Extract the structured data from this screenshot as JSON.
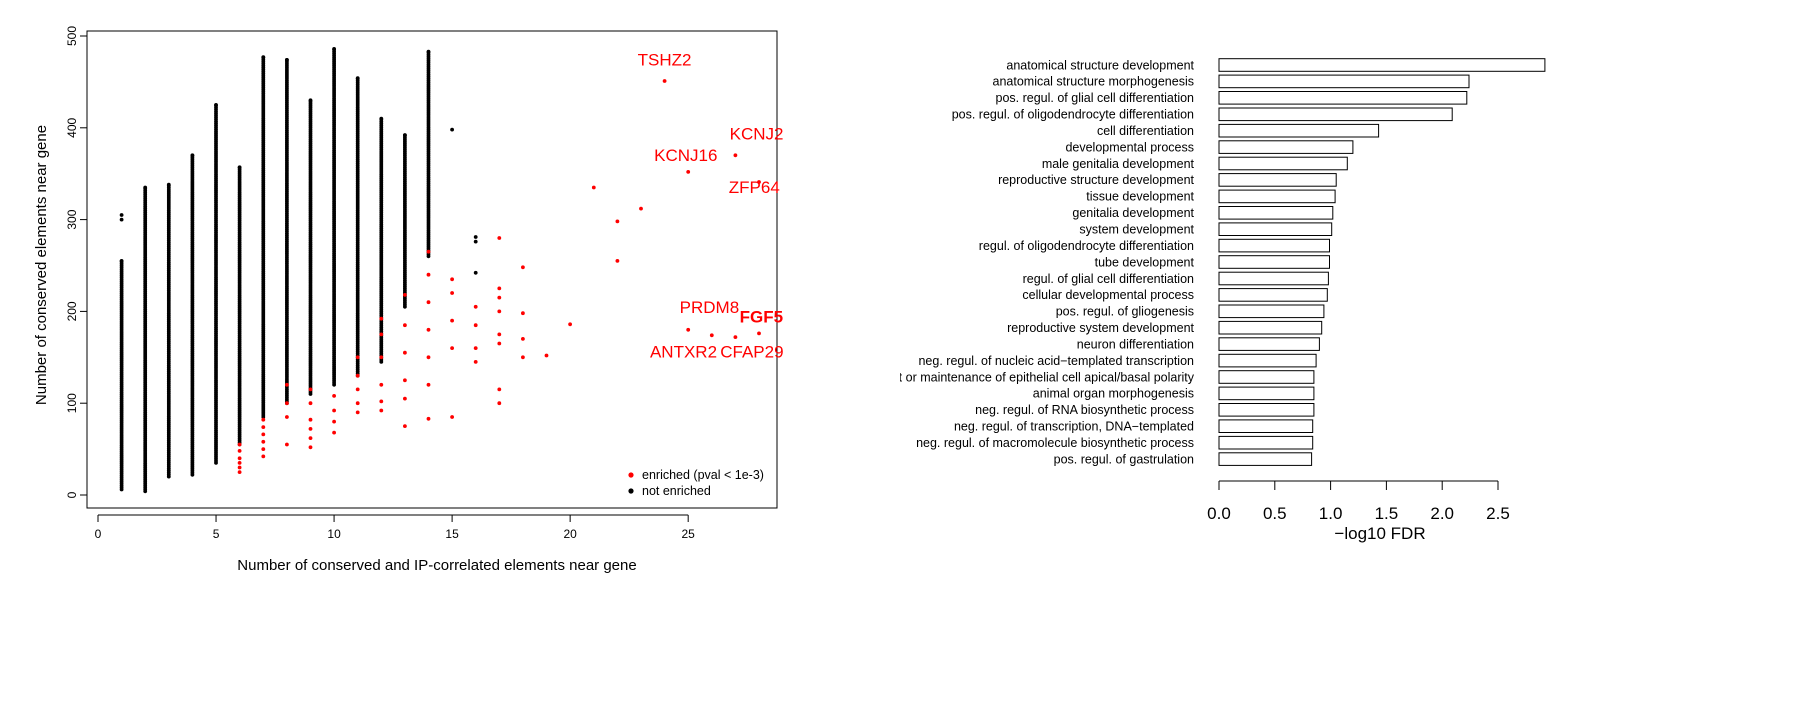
{
  "chart_data": [
    {
      "type": "scatter",
      "xlabel": "Number of conserved and IP-correlated elements near gene",
      "ylabel": "Number of conserved elements near gene",
      "xlim": [
        0,
        29
      ],
      "ylim": [
        0,
        510
      ],
      "x_ticks": [
        0,
        5,
        10,
        15,
        20,
        25
      ],
      "y_ticks": [
        0,
        100,
        200,
        300,
        400,
        500
      ],
      "grid": false,
      "legend_position": "bottom-right",
      "legend": [
        {
          "label": "enriched (pval < 1e-3)",
          "color": "#ff0000"
        },
        {
          "label": "not enriched",
          "color": "#000000"
        }
      ],
      "series": [
        {
          "legend_index": 1,
          "color": "#000000",
          "columns": [
            {
              "x": 1,
              "min": 6,
              "max": 255
            },
            {
              "x": 2,
              "min": 4,
              "max": 335
            },
            {
              "x": 3,
              "min": 20,
              "max": 338
            },
            {
              "x": 4,
              "min": 22,
              "max": 370
            },
            {
              "x": 5,
              "min": 35,
              "max": 425
            },
            {
              "x": 6,
              "min": 55,
              "max": 357
            },
            {
              "x": 7,
              "min": 85,
              "max": 477
            },
            {
              "x": 8,
              "min": 100,
              "max": 474
            },
            {
              "x": 9,
              "min": 110,
              "max": 430
            },
            {
              "x": 10,
              "min": 120,
              "max": 486
            },
            {
              "x": 11,
              "min": 130,
              "max": 454
            },
            {
              "x": 12,
              "min": 145,
              "max": 410
            },
            {
              "x": 13,
              "min": 205,
              "max": 392
            },
            {
              "x": 14,
              "min": 260,
              "max": 483
            }
          ],
          "points": [
            {
              "x": 1,
              "y": 305
            },
            {
              "x": 1,
              "y": 300
            },
            {
              "x": 15,
              "y": 398
            },
            {
              "x": 16,
              "y": 281
            },
            {
              "x": 16,
              "y": 276
            },
            {
              "x": 16,
              "y": 242
            }
          ]
        },
        {
          "legend_index": 0,
          "color": "#ff0000",
          "points": [
            {
              "x": 6,
              "y": 25
            },
            {
              "x": 6,
              "y": 30
            },
            {
              "x": 6,
              "y": 35
            },
            {
              "x": 6,
              "y": 40
            },
            {
              "x": 6,
              "y": 48
            },
            {
              "x": 6,
              "y": 55
            },
            {
              "x": 7,
              "y": 42
            },
            {
              "x": 7,
              "y": 50
            },
            {
              "x": 7,
              "y": 58
            },
            {
              "x": 7,
              "y": 66
            },
            {
              "x": 7,
              "y": 74
            },
            {
              "x": 7,
              "y": 82
            },
            {
              "x": 8,
              "y": 55
            },
            {
              "x": 8,
              "y": 85
            },
            {
              "x": 8,
              "y": 100
            },
            {
              "x": 8,
              "y": 120
            },
            {
              "x": 9,
              "y": 52
            },
            {
              "x": 9,
              "y": 62
            },
            {
              "x": 9,
              "y": 72
            },
            {
              "x": 9,
              "y": 82
            },
            {
              "x": 9,
              "y": 100
            },
            {
              "x": 9,
              "y": 115
            },
            {
              "x": 10,
              "y": 68
            },
            {
              "x": 10,
              "y": 80
            },
            {
              "x": 10,
              "y": 92
            },
            {
              "x": 10,
              "y": 108
            },
            {
              "x": 11,
              "y": 90
            },
            {
              "x": 11,
              "y": 100
            },
            {
              "x": 11,
              "y": 115
            },
            {
              "x": 11,
              "y": 130
            },
            {
              "x": 11,
              "y": 150
            },
            {
              "x": 12,
              "y": 92
            },
            {
              "x": 12,
              "y": 102
            },
            {
              "x": 12,
              "y": 120
            },
            {
              "x": 12,
              "y": 150
            },
            {
              "x": 12,
              "y": 175
            },
            {
              "x": 12,
              "y": 192
            },
            {
              "x": 13,
              "y": 75
            },
            {
              "x": 13,
              "y": 105
            },
            {
              "x": 13,
              "y": 125
            },
            {
              "x": 13,
              "y": 155
            },
            {
              "x": 13,
              "y": 185
            },
            {
              "x": 13,
              "y": 218
            },
            {
              "x": 14,
              "y": 83
            },
            {
              "x": 14,
              "y": 120
            },
            {
              "x": 14,
              "y": 150
            },
            {
              "x": 14,
              "y": 180
            },
            {
              "x": 14,
              "y": 210
            },
            {
              "x": 14,
              "y": 240
            },
            {
              "x": 14,
              "y": 265
            },
            {
              "x": 15,
              "y": 85
            },
            {
              "x": 15,
              "y": 160
            },
            {
              "x": 15,
              "y": 190
            },
            {
              "x": 15,
              "y": 220
            },
            {
              "x": 15,
              "y": 235
            },
            {
              "x": 16,
              "y": 145
            },
            {
              "x": 16,
              "y": 160
            },
            {
              "x": 16,
              "y": 185
            },
            {
              "x": 16,
              "y": 205
            },
            {
              "x": 17,
              "y": 100
            },
            {
              "x": 17,
              "y": 115
            },
            {
              "x": 17,
              "y": 165
            },
            {
              "x": 17,
              "y": 175
            },
            {
              "x": 17,
              "y": 200
            },
            {
              "x": 17,
              "y": 215
            },
            {
              "x": 17,
              "y": 225
            },
            {
              "x": 17,
              "y": 280
            },
            {
              "x": 18,
              "y": 150
            },
            {
              "x": 18,
              "y": 170
            },
            {
              "x": 18,
              "y": 198
            },
            {
              "x": 18,
              "y": 248
            },
            {
              "x": 19,
              "y": 152
            },
            {
              "x": 20,
              "y": 186
            },
            {
              "x": 21,
              "y": 335
            },
            {
              "x": 22,
              "y": 298
            },
            {
              "x": 22,
              "y": 255
            },
            {
              "x": 23,
              "y": 312
            },
            {
              "x": 24,
              "y": 451
            },
            {
              "x": 25,
              "y": 180
            },
            {
              "x": 25,
              "y": 352
            },
            {
              "x": 26,
              "y": 174
            },
            {
              "x": 27,
              "y": 172
            },
            {
              "x": 27,
              "y": 370
            },
            {
              "x": 28,
              "y": 341
            },
            {
              "x": 28,
              "y": 176
            }
          ]
        }
      ],
      "annotations": [
        {
          "text": "TSHZ2",
          "x": 24,
          "y": 468,
          "color": "#ff0000",
          "bold": false,
          "anchor": "middle"
        },
        {
          "text": "KCNJ2",
          "x": 27.9,
          "y": 387,
          "color": "#ff0000",
          "bold": false,
          "anchor": "middle"
        },
        {
          "text": "KCNJ16",
          "x": 24.9,
          "y": 364,
          "color": "#ff0000",
          "bold": false,
          "anchor": "middle"
        },
        {
          "text": "ZFP64",
          "x": 27.8,
          "y": 329,
          "color": "#ff0000",
          "bold": false,
          "anchor": "middle"
        },
        {
          "text": "PRDM8",
          "x": 25.9,
          "y": 198,
          "color": "#ff0000",
          "bold": false,
          "anchor": "middle"
        },
        {
          "text": "FGF5",
          "x": 28.1,
          "y": 188,
          "color": "#ff0000",
          "bold": true,
          "anchor": "middle"
        },
        {
          "text": "ANTXR2",
          "x": 24.8,
          "y": 150,
          "color": "#ff0000",
          "bold": false,
          "anchor": "middle"
        },
        {
          "text": "CFAP29",
          "x": 27.7,
          "y": 150,
          "color": "#ff0000",
          "bold": false,
          "anchor": "middle"
        }
      ]
    },
    {
      "type": "bar",
      "orientation": "horizontal",
      "xlabel": "−log10 FDR",
      "xlim": [
        0,
        2.9
      ],
      "x_ticks": [
        0,
        0.5,
        1,
        1.5,
        2,
        2.5
      ],
      "x_tick_labels": [
        "0.0",
        "0.5",
        "1.0",
        "1.5",
        "2.0",
        "2.5"
      ],
      "bar_fill": "#ffffff",
      "bar_stroke": "#000000",
      "categories": [
        "anatomical structure development",
        "anatomical structure morphogenesis",
        "pos. regul. of glial cell differentiation",
        "pos. regul. of oligodendrocyte differentiation",
        "cell differentiation",
        "developmental process",
        "male genitalia development",
        "reproductive structure development",
        "tissue development",
        "genitalia development",
        "system development",
        "regul. of oligodendrocyte differentiation",
        "tube development",
        "regul. of glial cell differentiation",
        "cellular developmental process",
        "pos. regul. of gliogenesis",
        "reproductive system development",
        "neuron differentiation",
        "neg. regul. of nucleic acid−templated transcription",
        "establishment or maintenance of epithelial cell apical/basal polarity",
        "animal organ morphogenesis",
        "neg. regul. of RNA biosynthetic process",
        "neg. regul. of transcription, DNA−templated",
        "neg. regul. of macromolecule biosynthetic process",
        "pos. regul. of gastrulation"
      ],
      "values": [
        2.92,
        2.24,
        2.22,
        2.09,
        1.43,
        1.2,
        1.15,
        1.05,
        1.04,
        1.02,
        1.01,
        0.99,
        0.99,
        0.98,
        0.97,
        0.94,
        0.92,
        0.9,
        0.87,
        0.85,
        0.85,
        0.85,
        0.84,
        0.84,
        0.83
      ]
    }
  ]
}
